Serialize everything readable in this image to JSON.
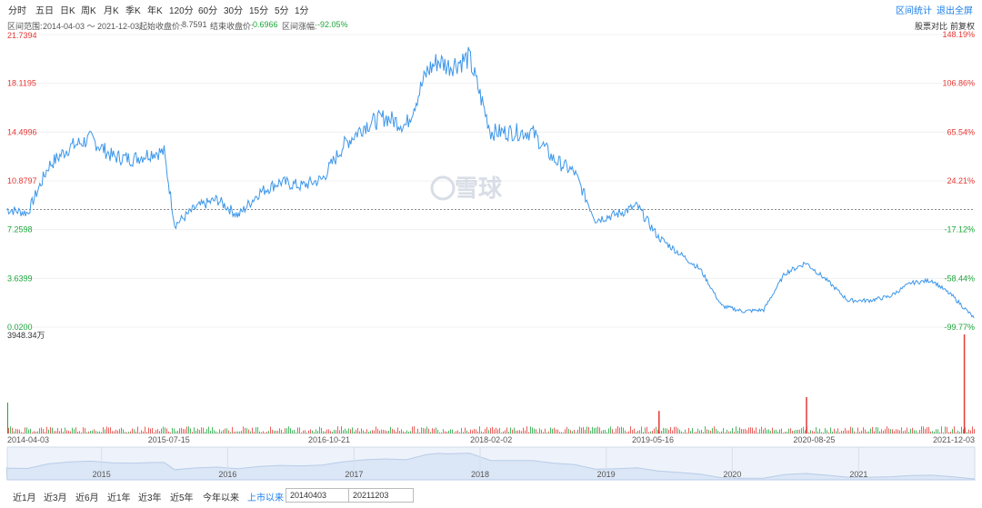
{
  "toolbar": {
    "periods": [
      "分时",
      "五日",
      "日K",
      "周K",
      "月K",
      "季K",
      "年K",
      "120分",
      "60分",
      "30分",
      "15分",
      "5分",
      "1分"
    ],
    "range_stats": "区间统计",
    "exit_fullscreen": "退出全屏"
  },
  "info": {
    "range_label": "区间范围:",
    "range_value": "2014-04-03 ～ 2021-12-03",
    "start_label": "起始收盘价:",
    "start_value": "8.7591",
    "end_label": "结束收盘价:",
    "end_value": "0.6966",
    "change_label": "区间涨幅:",
    "change_value": "-92.05%",
    "compare": "股票对比",
    "adjust": "前复权"
  },
  "watermark": "雪球",
  "colors": {
    "line": "#3d97ea",
    "up": "#e53935",
    "down": "#1ea63c",
    "baseline": "#888888",
    "navigator": "#dbe6f6"
  },
  "chart_data": {
    "type": "line",
    "price_axis": {
      "ticks": [
        "21.7394",
        "18.1195",
        "14.4996",
        "10.8797",
        "7.2598",
        "3.6399",
        "0.0200"
      ],
      "tick_values": [
        21.7394,
        18.1195,
        14.4996,
        10.8797,
        7.2598,
        3.6399,
        0.02
      ],
      "ylim": [
        0.02,
        21.7394
      ],
      "baseline": 8.7591
    },
    "pct_axis": {
      "ticks": [
        "148.19%",
        "106.86%",
        "65.54%",
        "24.21%",
        "-17.12%",
        "-58.44%",
        "-99.77%"
      ]
    },
    "volume_axis": {
      "max_label": "3948.34万"
    },
    "date_ticks": [
      "2014-04-03",
      "2015-07-15",
      "2016-10-21",
      "2018-02-02",
      "2019-05-16",
      "2020-08-25",
      "2021-12-03"
    ],
    "x": [
      "2014-04",
      "2014-06",
      "2014-08",
      "2014-10",
      "2014-12",
      "2015-02",
      "2015-04",
      "2015-06",
      "2015-07",
      "2015-08",
      "2015-10",
      "2015-12",
      "2016-02",
      "2016-04",
      "2016-06",
      "2016-08",
      "2016-10",
      "2016-12",
      "2017-02",
      "2017-04",
      "2017-06",
      "2017-08",
      "2017-09",
      "2017-10",
      "2017-12",
      "2018-02",
      "2018-04",
      "2018-06",
      "2018-08",
      "2018-10",
      "2018-12",
      "2019-02",
      "2019-04",
      "2019-06",
      "2019-08",
      "2019-10",
      "2019-12",
      "2020-02",
      "2020-04",
      "2020-06",
      "2020-08",
      "2020-10",
      "2020-12",
      "2021-02",
      "2021-04",
      "2021-06",
      "2021-08",
      "2021-10",
      "2021-12"
    ],
    "values": [
      8.76,
      8.5,
      12.0,
      13.4,
      14.0,
      12.7,
      12.5,
      13.0,
      13.0,
      7.6,
      8.9,
      9.5,
      8.3,
      10.0,
      10.8,
      10.5,
      11.0,
      13.5,
      15.0,
      15.6,
      15.0,
      19.0,
      19.8,
      19.4,
      20.0,
      14.5,
      14.5,
      14.5,
      12.5,
      11.5,
      8.0,
      8.4,
      9.0,
      6.7,
      5.5,
      4.3,
      1.6,
      1.2,
      1.3,
      4.0,
      4.8,
      3.5,
      2.0,
      2.0,
      2.3,
      3.3,
      3.5,
      2.3,
      0.7
    ],
    "volume_max": 3948.34,
    "volume_highlights": [
      {
        "x": "2019-06",
        "value": 900,
        "dir": "up"
      },
      {
        "x": "2020-08",
        "value": 1450,
        "dir": "up"
      },
      {
        "x": "2021-11",
        "value": 3948.34,
        "dir": "up"
      }
    ],
    "navigator_years": [
      "2015",
      "2016",
      "2017",
      "2018",
      "2019",
      "2020",
      "2021"
    ]
  },
  "bottom": {
    "ranges": [
      "近1月",
      "近3月",
      "近6月",
      "近1年",
      "近3年",
      "近5年",
      "今年以来",
      "上市以来"
    ],
    "active": "上市以来",
    "start_date": "20140403",
    "end_date": "20211203"
  }
}
